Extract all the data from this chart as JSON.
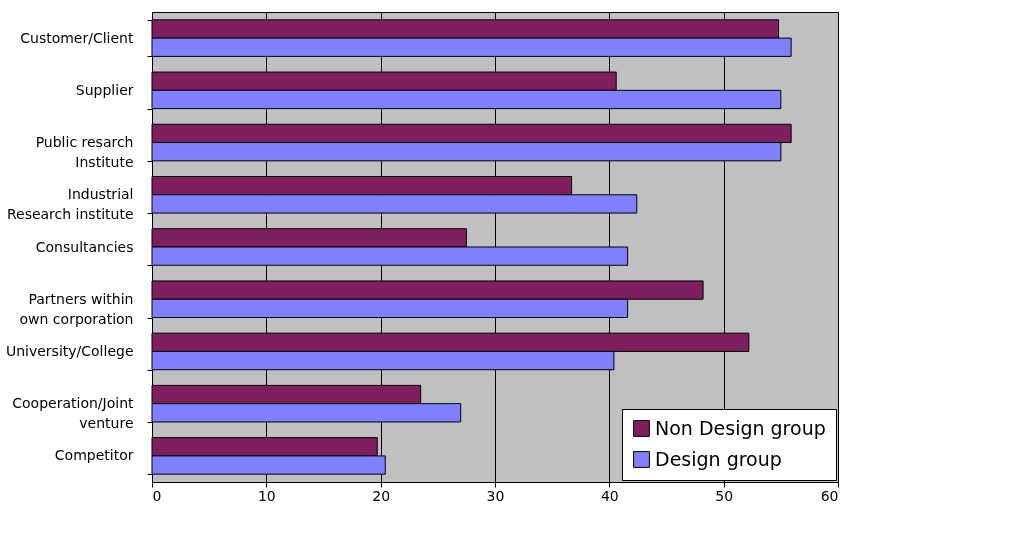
{
  "chart_data": {
    "type": "bar",
    "orientation": "horizontal",
    "categories": [
      "Customer/Client",
      "Supplier",
      "Public resarch\nInstitute",
      "Industrial\nResearch institute",
      "Consultancies",
      "Partners within\nown corporation",
      "University/College",
      "Cooperation/Joint\nventure",
      "Competitor"
    ],
    "series": [
      {
        "name": "Non Design group",
        "color": "#7f1f5f",
        "values": [
          54.8,
          40.6,
          55.9,
          36.7,
          27.5,
          48.2,
          52.2,
          23.5,
          19.7
        ]
      },
      {
        "name": "Design group",
        "color": "#8080ff",
        "values": [
          55.9,
          55.0,
          55.0,
          42.4,
          41.6,
          41.6,
          40.4,
          27.0,
          20.4
        ]
      }
    ],
    "xlim": [
      0,
      60
    ],
    "xticks": [
      0,
      10,
      20,
      30,
      40,
      50,
      60
    ],
    "grid": "x",
    "legend": "bottom right"
  }
}
